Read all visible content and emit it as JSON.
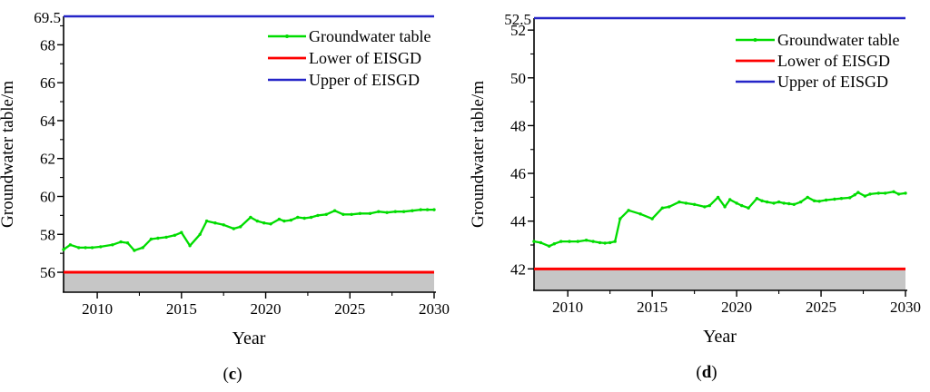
{
  "colors": {
    "groundwater_line": "#00dc00",
    "lower_line": "#fe0000",
    "upper_line": "#2525c8",
    "band_fill": "#c6c6c6",
    "axis_color": "#000000",
    "text_color": "#000000"
  },
  "chart_data": [
    {
      "type": "line",
      "panel_label": "c",
      "xlabel": "Year",
      "ylabel": "Groundwater table/m",
      "xlim": [
        2008,
        2030
      ],
      "ylim": [
        54.95,
        69.5
      ],
      "x_major_ticks": [
        2010,
        2015,
        2020,
        2025,
        2030
      ],
      "x_minor_ticks": [
        2012.5,
        2017.5,
        2022.5,
        2027.5
      ],
      "y_major_ticks": [
        56,
        58,
        60,
        62,
        64,
        66,
        68
      ],
      "y_minor_ticks": [
        57,
        59,
        61,
        63,
        65,
        67,
        69
      ],
      "y_top_edge_label": "69.5",
      "grid": false,
      "legend_position": "upper-right-inside",
      "legend": [
        {
          "label": "Groundwater table",
          "color_key": "groundwater_line",
          "marker": true
        },
        {
          "label": "Lower of EISGD",
          "color_key": "lower_line",
          "marker": false
        },
        {
          "label": "Upper of EISGD",
          "color_key": "upper_line",
          "marker": false
        }
      ],
      "shaded_band": {
        "from": 54.95,
        "to": 56
      },
      "series": [
        {
          "name": "Groundwater table",
          "role": "data",
          "color_key": "groundwater_line",
          "x": [
            2008.0,
            2008.4,
            2008.9,
            2009.3,
            2009.7,
            2010.2,
            2010.9,
            2011.4,
            2011.8,
            2012.2,
            2012.7,
            2013.2,
            2013.6,
            2014.1,
            2014.6,
            2015.0,
            2015.5,
            2016.1,
            2016.5,
            2017.0,
            2017.5,
            2018.1,
            2018.5,
            2019.1,
            2019.5,
            2019.9,
            2020.3,
            2020.8,
            2021.1,
            2021.5,
            2021.9,
            2022.3,
            2022.7,
            2023.1,
            2023.6,
            2024.1,
            2024.6,
            2025.1,
            2025.6,
            2026.2,
            2026.7,
            2027.2,
            2027.7,
            2028.2,
            2028.7,
            2029.2,
            2029.6,
            2030.0
          ],
          "y": [
            57.2,
            57.45,
            57.3,
            57.3,
            57.3,
            57.35,
            57.45,
            57.6,
            57.55,
            57.15,
            57.3,
            57.75,
            57.8,
            57.85,
            57.95,
            58.1,
            57.4,
            58.0,
            58.7,
            58.6,
            58.5,
            58.3,
            58.4,
            58.9,
            58.7,
            58.6,
            58.55,
            58.8,
            58.7,
            58.75,
            58.9,
            58.85,
            58.9,
            59.0,
            59.05,
            59.25,
            59.05,
            59.05,
            59.1,
            59.1,
            59.2,
            59.15,
            59.2,
            59.2,
            59.25,
            59.3,
            59.3,
            59.3
          ]
        },
        {
          "name": "Lower of EISGD",
          "role": "lower",
          "color_key": "lower_line",
          "constant": 56
        },
        {
          "name": "Upper of EISGD",
          "role": "upper",
          "color_key": "upper_line",
          "constant": 69.5
        }
      ]
    },
    {
      "type": "line",
      "panel_label": "d",
      "xlabel": "Year",
      "ylabel": "Groundwater table/m",
      "xlim": [
        2008,
        2030
      ],
      "ylim": [
        41.1,
        52.5
      ],
      "x_major_ticks": [
        2010,
        2015,
        2020,
        2025,
        2030
      ],
      "x_minor_ticks": [
        2012.5,
        2017.5,
        2022.5,
        2027.5
      ],
      "y_major_ticks": [
        42,
        44,
        46,
        48,
        50,
        52
      ],
      "y_minor_ticks": [
        43,
        45,
        47,
        49,
        51
      ],
      "y_top_edge_label": "52.5",
      "grid": false,
      "legend_position": "upper-right-inside",
      "legend": [
        {
          "label": "Groundwater table",
          "color_key": "groundwater_line",
          "marker": true
        },
        {
          "label": "Lower of EISGD",
          "color_key": "lower_line",
          "marker": false
        },
        {
          "label": "Upper of EISGD",
          "color_key": "upper_line",
          "marker": false
        }
      ],
      "shaded_band": {
        "from": 41.1,
        "to": 42
      },
      "series": [
        {
          "name": "Groundwater table",
          "role": "data",
          "color_key": "groundwater_line",
          "x": [
            2008.0,
            2008.4,
            2008.9,
            2009.2,
            2009.6,
            2010.1,
            2010.6,
            2011.1,
            2011.5,
            2011.9,
            2012.2,
            2012.5,
            2012.8,
            2013.1,
            2013.6,
            2014.3,
            2015.0,
            2015.6,
            2016.0,
            2016.6,
            2017.0,
            2017.5,
            2018.1,
            2018.4,
            2018.9,
            2019.3,
            2019.6,
            2020.0,
            2020.3,
            2020.7,
            2021.2,
            2021.5,
            2021.8,
            2022.2,
            2022.5,
            2022.8,
            2023.1,
            2023.4,
            2023.8,
            2024.2,
            2024.6,
            2024.9,
            2025.3,
            2025.8,
            2026.2,
            2026.7,
            2027.0,
            2027.2,
            2027.6,
            2027.9,
            2028.4,
            2028.8,
            2029.3,
            2029.6,
            2030.0
          ],
          "y": [
            43.15,
            43.1,
            42.95,
            43.05,
            43.15,
            43.15,
            43.15,
            43.2,
            43.15,
            43.1,
            43.08,
            43.1,
            43.15,
            44.1,
            44.45,
            44.3,
            44.1,
            44.55,
            44.6,
            44.8,
            44.75,
            44.7,
            44.6,
            44.65,
            45.0,
            44.6,
            44.9,
            44.75,
            44.65,
            44.55,
            44.95,
            44.85,
            44.8,
            44.75,
            44.8,
            44.75,
            44.73,
            44.7,
            44.8,
            45.0,
            44.85,
            44.83,
            44.88,
            44.92,
            44.95,
            44.98,
            45.1,
            45.2,
            45.05,
            45.13,
            45.17,
            45.17,
            45.23,
            45.13,
            45.17
          ]
        },
        {
          "name": "Lower of EISGD",
          "role": "lower",
          "color_key": "lower_line",
          "constant": 42
        },
        {
          "name": "Upper of EISGD",
          "role": "upper",
          "color_key": "upper_line",
          "constant": 52.5
        }
      ]
    }
  ]
}
